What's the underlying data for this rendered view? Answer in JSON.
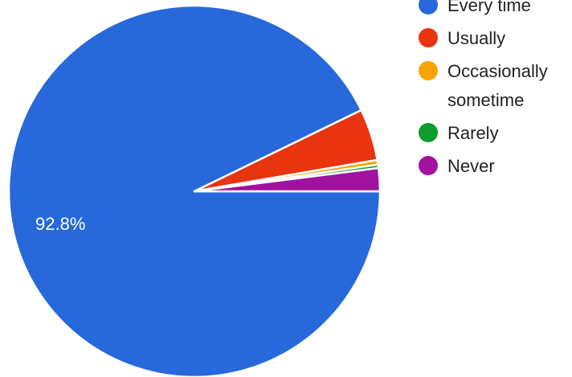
{
  "chart_data": {
    "type": "pie",
    "slices": [
      {
        "label": "Every time",
        "value": 92.8,
        "color": "#2769DB"
      },
      {
        "label": "Usually",
        "value": 4.5,
        "color": "#E8340F"
      },
      {
        "label": "Occasionally sometime",
        "value": 0.4,
        "color": "#F9A404"
      },
      {
        "label": "Rarely",
        "value": 0.3,
        "color": "#0F9D2E"
      },
      {
        "label": "Never",
        "value": 2.0,
        "color": "#A0139F"
      }
    ],
    "data_labels": [
      "92.8%"
    ],
    "legend": {
      "placement": "right",
      "entries": [
        {
          "label_lines": [
            "Every time"
          ],
          "color": "#2769DB"
        },
        {
          "label_lines": [
            "Usually"
          ],
          "color": "#E8340F"
        },
        {
          "label_lines": [
            "Occasionally",
            "sometime"
          ],
          "color": "#F9A404"
        },
        {
          "label_lines": [
            "Rarely"
          ],
          "color": "#0F9D2E"
        },
        {
          "label_lines": [
            "Never"
          ],
          "color": "#A0139F"
        }
      ]
    }
  }
}
